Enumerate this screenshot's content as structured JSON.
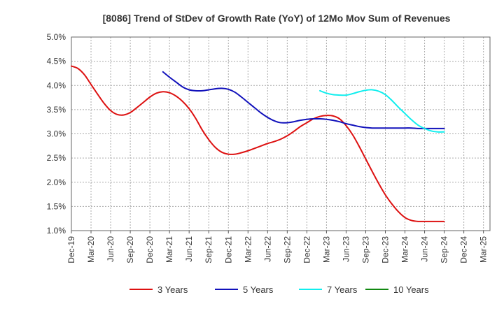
{
  "chart_data": {
    "type": "line",
    "title": "[8086]  Trend of StDev of Growth Rate (YoY) of 12Mo Mov Sum of Revenues",
    "xlabel": "",
    "ylabel": "",
    "ylim": [
      1.0,
      5.0
    ],
    "yticks": [
      1.0,
      1.5,
      2.0,
      2.5,
      3.0,
      3.5,
      4.0,
      4.5,
      5.0
    ],
    "ytick_labels": [
      "1.0%",
      "1.5%",
      "2.0%",
      "2.5%",
      "3.0%",
      "3.5%",
      "4.0%",
      "4.5%",
      "5.0%"
    ],
    "x_tick_labels": [
      "Dec-19",
      "Mar-20",
      "Jun-20",
      "Sep-20",
      "Dec-20",
      "Mar-21",
      "Jun-21",
      "Sep-21",
      "Dec-21",
      "Mar-22",
      "Jun-22",
      "Sep-22",
      "Dec-22",
      "Mar-23",
      "Jun-23",
      "Sep-23",
      "Dec-23",
      "Mar-24",
      "Jun-24",
      "Sep-24",
      "Dec-24",
      "Mar-25"
    ],
    "x_count": 64,
    "grid": true,
    "legend_position": "bottom",
    "series": [
      {
        "name": "3 Years",
        "color": "#dd1111",
        "start_index": 0,
        "values": [
          4.4,
          4.35,
          4.22,
          4.02,
          3.82,
          3.63,
          3.48,
          3.4,
          3.39,
          3.44,
          3.54,
          3.65,
          3.76,
          3.84,
          3.87,
          3.85,
          3.78,
          3.67,
          3.52,
          3.32,
          3.08,
          2.88,
          2.72,
          2.62,
          2.58,
          2.58,
          2.61,
          2.65,
          2.7,
          2.75,
          2.8,
          2.84,
          2.89,
          2.96,
          3.05,
          3.15,
          3.23,
          3.31,
          3.36,
          3.38,
          3.37,
          3.31,
          3.17,
          2.98,
          2.74,
          2.48,
          2.22,
          1.97,
          1.74,
          1.55,
          1.39,
          1.27,
          1.21,
          1.19,
          1.19,
          1.19,
          1.19,
          1.19
        ]
      },
      {
        "name": "5 Years",
        "color": "#1111bb",
        "start_index": 14,
        "values": [
          4.28,
          4.17,
          4.07,
          3.97,
          3.91,
          3.89,
          3.89,
          3.91,
          3.93,
          3.94,
          3.92,
          3.86,
          3.76,
          3.65,
          3.54,
          3.43,
          3.34,
          3.27,
          3.23,
          3.23,
          3.25,
          3.28,
          3.3,
          3.31,
          3.31,
          3.3,
          3.28,
          3.25,
          3.21,
          3.18,
          3.15,
          3.13,
          3.12,
          3.12,
          3.12,
          3.12,
          3.12,
          3.12,
          3.12,
          3.11,
          3.11,
          3.11,
          3.11,
          3.11
        ]
      },
      {
        "name": "7 Years",
        "color": "#11eeee",
        "start_index": 38,
        "values": [
          3.89,
          3.84,
          3.81,
          3.8,
          3.8,
          3.83,
          3.87,
          3.9,
          3.91,
          3.88,
          3.81,
          3.69,
          3.55,
          3.42,
          3.29,
          3.18,
          3.11,
          3.06,
          3.04,
          3.04
        ]
      },
      {
        "name": "10 Years",
        "color": "#118811",
        "start_index": 0,
        "values": []
      }
    ]
  }
}
